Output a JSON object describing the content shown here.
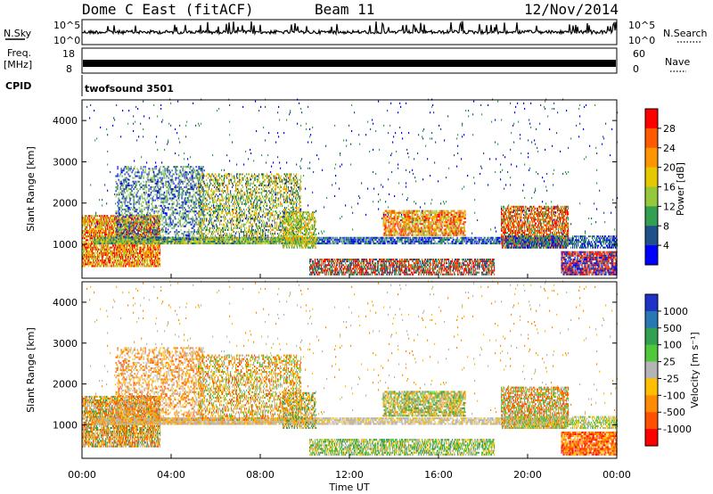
{
  "header": {
    "station": "Dome C East (fitACF)",
    "beam": "Beam 11",
    "date": "12/Nov/2014"
  },
  "noise_panel": {
    "left_label": "N.Sky",
    "right_label": "N.Search",
    "left_ticks": [
      "10^5",
      "10^0"
    ],
    "right_ticks": [
      "10^5",
      "10^0"
    ]
  },
  "freq_panel": {
    "left_label_1": "Freq.",
    "left_label_2": "[MHz]",
    "right_label": "Nave",
    "left_ticks": [
      "18",
      "8"
    ],
    "right_ticks": [
      "60",
      "0"
    ]
  },
  "cpid_panel": {
    "label": "CPID",
    "value": "twofsound 3501"
  },
  "chart_data": [
    {
      "type": "heatmap",
      "quantity": "Power",
      "ylabel": "Slant Range [km]",
      "colorbar_label": "Power [dB]",
      "colorbar_ticks": [
        "28",
        "24",
        "20",
        "16",
        "12",
        "8",
        "4"
      ],
      "colorbar_colors": [
        "#ff0000",
        "#ff5a00",
        "#ff9600",
        "#e6c800",
        "#96c83c",
        "#32a050",
        "#1e508c",
        "#0000ff"
      ],
      "y_ticks": [
        "4000",
        "3000",
        "2000",
        "1000"
      ],
      "ylim": [
        180,
        4500
      ],
      "xlim": [
        "00:00",
        "24:00"
      ]
    },
    {
      "type": "heatmap",
      "quantity": "Velocity",
      "ylabel": "Slant Range [km]",
      "colorbar_label": "Velocity [m s⁻¹]",
      "colorbar_ticks": [
        "1000",
        "500",
        "100",
        "25",
        "-25",
        "-100",
        "-500",
        "-1000"
      ],
      "colorbar_colors": [
        "#1e32c8",
        "#2878b4",
        "#32a050",
        "#50c83c",
        "#b4b4b4",
        "#ffbe00",
        "#ff8c00",
        "#ff5000",
        "#ff0000"
      ],
      "y_ticks": [
        "4000",
        "3000",
        "2000",
        "1000"
      ],
      "ylim": [
        180,
        4500
      ],
      "xlim": [
        "00:00",
        "24:00"
      ]
    }
  ],
  "x_axis": {
    "ticks": [
      "00:00",
      "04:00",
      "08:00",
      "12:00",
      "16:00",
      "20:00",
      "00:00"
    ],
    "label": "Time UT"
  },
  "colors": {
    "frame": "#000000",
    "trace": "#000000"
  }
}
